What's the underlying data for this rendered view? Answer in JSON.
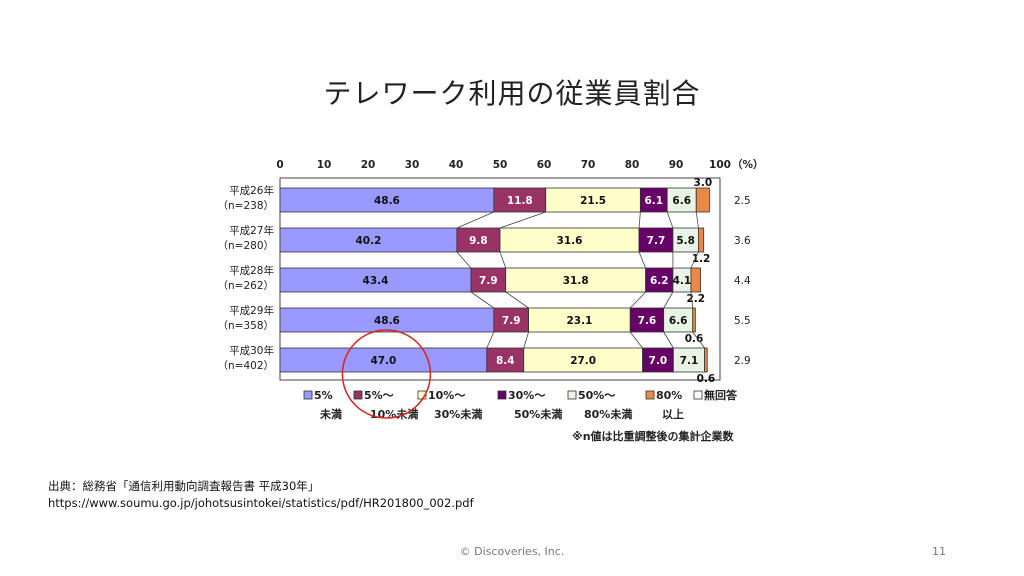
{
  "slide": {
    "title": "テレワーク利用の従業員割合",
    "source_line1": "出典：総務省「通信利用動向調査報告書 平成30年」",
    "source_line2": "https://www.soumu.go.jp/johotsusintokei/statistics/pdf/HR201800_002.pdf",
    "copyright": "© Discoveries, Inc.",
    "page_number": "11"
  },
  "chart_data": {
    "type": "bar",
    "orientation": "horizontal",
    "stacked": true,
    "unit_label": "（%）",
    "xlim": [
      0,
      100
    ],
    "x_ticks": [
      "0",
      "10",
      "20",
      "30",
      "40",
      "50",
      "60",
      "70",
      "80",
      "90",
      "100"
    ],
    "categories": [
      {
        "year": "平成26年",
        "n": "（n=238）"
      },
      {
        "year": "平成27年",
        "n": "（n=280）"
      },
      {
        "year": "平成28年",
        "n": "（n=262）"
      },
      {
        "year": "平成29年",
        "n": "（n=358）"
      },
      {
        "year": "平成30年",
        "n": "（n=402）"
      }
    ],
    "series": [
      {
        "name": "5%未満",
        "legend": [
          "□5%",
          "未満"
        ],
        "color": "#9999ff",
        "text_color": "#111111",
        "values": [
          48.6,
          40.2,
          43.4,
          48.6,
          47.0
        ],
        "labels": [
          "48.6",
          "40.2",
          "43.4",
          "48.6",
          "47.0"
        ]
      },
      {
        "name": "5%～10%未満",
        "legend": [
          "■5%～",
          "10%未満"
        ],
        "color": "#993366",
        "text_color": "#ffffff",
        "values": [
          11.8,
          9.8,
          7.9,
          7.9,
          8.4
        ],
        "labels": [
          "11.8",
          "9.8",
          "7.9",
          "7.9",
          "8.4"
        ]
      },
      {
        "name": "10%～30%未満",
        "legend": [
          "□10%～",
          "30%未満"
        ],
        "color": "#ffffcc",
        "text_color": "#111111",
        "values": [
          21.5,
          31.6,
          31.8,
          23.1,
          27.0
        ],
        "labels": [
          "21.5",
          "31.6",
          "31.8",
          "23.1",
          "27.0"
        ]
      },
      {
        "name": "30%～50%未満",
        "legend": [
          "■30%～",
          "50%未満"
        ],
        "color": "#660066",
        "text_color": "#ffffff",
        "values": [
          6.1,
          7.7,
          6.2,
          7.6,
          7.0
        ],
        "labels": [
          "6.1",
          "7.7",
          "6.2",
          "7.6",
          "7.0"
        ]
      },
      {
        "name": "50%～80%未満",
        "legend": [
          "□50%～",
          "80%未満"
        ],
        "color": "#e8f4e4",
        "text_color": "#111111",
        "values": [
          6.6,
          5.8,
          4.1,
          6.6,
          7.1
        ],
        "labels": [
          "6.6",
          "5.8",
          "4.1",
          "6.6",
          "7.1"
        ]
      },
      {
        "name": "80%以上",
        "legend": [
          "■80%",
          "以上"
        ],
        "color": "#e8894a",
        "text_color": "#111111",
        "values": [
          3.0,
          1.2,
          2.2,
          0.6,
          0.6
        ],
        "labels": [
          "3.0",
          "1.2",
          "2.2",
          "0.6",
          "0.6"
        ]
      },
      {
        "name": "無回答",
        "legend": [
          "□無回答"
        ],
        "color": "#ffffff",
        "text_color": "#111111",
        "values": [
          2.5,
          3.6,
          4.4,
          5.5,
          2.9
        ],
        "labels": [
          "2.5",
          "3.6",
          "4.4",
          "5.5",
          "2.9"
        ]
      }
    ],
    "note": "※n値は比重調整後の集計企業数",
    "highlight": {
      "category": "平成30年",
      "series": "5%未満",
      "color": "#dd2222"
    }
  }
}
